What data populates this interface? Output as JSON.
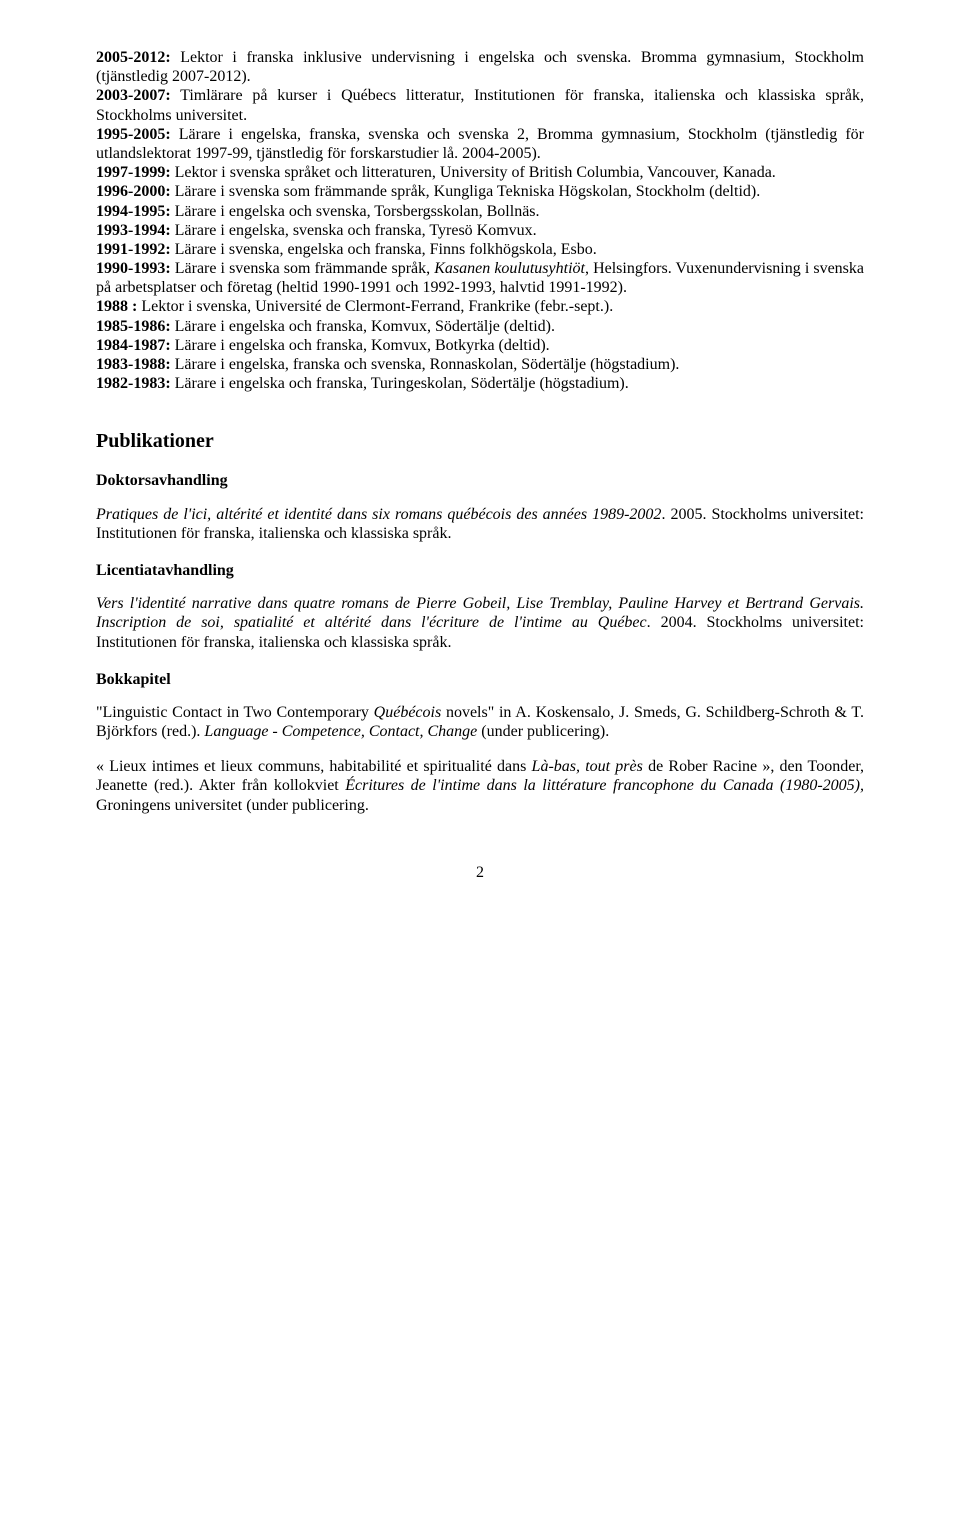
{
  "entries": [
    {
      "years": "2005-2012:",
      "text": " Lektor i franska inklusive undervisning i engelska och svenska. Bromma gymnasium, Stockholm (tjänstledig 2007-2012)."
    },
    {
      "years": "2003-2007:",
      "text": " Timlärare på kurser i Québecs litteratur, Institutionen för franska, italienska och klassiska språk, Stockholms universitet."
    },
    {
      "years": "1995-2005:",
      "text": " Lärare i engelska, franska, svenska och svenska 2, Bromma gymnasium, Stockholm (tjänstledig för utlandslektorat 1997-99, tjänstledig för forskarstudier lå. 2004-2005)."
    },
    {
      "years": "1997-1999:",
      "text": " Lektor i svenska språket och litteraturen, University of British Columbia, Vancouver, Kanada."
    },
    {
      "years": "1996-2000:",
      "text": " Lärare i svenska som främmande språk, Kungliga Tekniska Högskolan, Stockholm (deltid)."
    },
    {
      "years": "1994-1995:",
      "text": " Lärare i engelska och svenska, Torsbergsskolan, Bollnäs."
    },
    {
      "years": "1993-1994:",
      "text": " Lärare i engelska, svenska och franska, Tyresö Komvux."
    },
    {
      "years": "1991-1992:",
      "text": " Lärare i svenska, engelska och franska, Finns folkhögskola, Esbo."
    }
  ],
  "entry_1990": {
    "years": "1990-1993:",
    "pre": " Lärare i svenska som främmande språk, ",
    "italic": "Kasanen koulutusyhtiöt",
    "post": ",  Helsingfors. Vuxenundervisning i svenska på arbetsplatser och företag (heltid 1990-1991 och 1992-1993, halvtid 1991-1992)."
  },
  "entry_1988": {
    "years": "1988 :",
    "text": " Lektor i svenska, Université de Clermont-Ferrand, Frankrike (febr.-sept.)."
  },
  "entries2": [
    {
      "years": "1985-1986:",
      "text": " Lärare i engelska och franska, Komvux, Södertälje (deltid)."
    },
    {
      "years": "1984-1987:",
      "text": " Lärare i engelska och franska, Komvux, Botkyrka (deltid)."
    },
    {
      "years": "1983-1988:",
      "text": " Lärare i engelska, franska och svenska, Ronnaskolan, Södertälje (högstadium)."
    },
    {
      "years": "1982-1983:",
      "text": " Lärare i engelska och franska, Turingeskolan, Södertälje (högstadium)."
    }
  ],
  "pub_heading": "Publikationer",
  "doktor_heading": "Doktorsavhandling",
  "doktor_para": {
    "italic": "Pratiques de l'ici, altérité et identité dans six romans québécois des années 1989-2002",
    "post": ". 2005. Stockholms universitet: Institutionen för franska, italienska och klassiska språk."
  },
  "lic_heading": "Licentiatavhandling",
  "lic_para": {
    "italic1": "Vers l'identité narrative dans quatre romans de Pierre Gobeil, Lise Tremblay, Pauline Harvey et Bertrand Gervais. Inscription de soi, spatialité et altérité dans l'écriture de l'intime au Québec",
    "post": ". 2004. Stockholms universitet: Institutionen för franska, italienska och klassiska språk."
  },
  "bok_heading": "Bokkapitel",
  "bok_para1": {
    "pre": "\"Linguistic Contact in Two Contemporary ",
    "italic1": "Québécois",
    "mid": " novels\" in A. Koskensalo, J. Smeds, G. Schildberg-Schroth & T. Björkfors (red.).  ",
    "italic2": "Language - Competence, Contact, Change ",
    "post": "(under publicering)."
  },
  "bok_para2": {
    "pre": "« Lieux intimes et lieux communs, habitabilité et spiritualité dans ",
    "italic1": "Là-bas, tout près",
    "mid1": " de Rober Racine »,  den Toonder, Jeanette (red.).  Akter från kollokviet ",
    "italic2": "Écritures de l'intime dans la littérature francophone du Canada (1980-2005), ",
    "post": " Groningens universitet (under publicering."
  },
  "pagenum": "2"
}
